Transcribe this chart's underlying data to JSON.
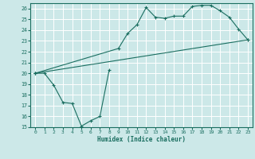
{
  "xlabel": "Humidex (Indice chaleur)",
  "ylabel": "",
  "xlim": [
    -0.5,
    23.5
  ],
  "ylim": [
    15,
    26.5
  ],
  "xticks": [
    0,
    1,
    2,
    3,
    4,
    5,
    6,
    7,
    8,
    9,
    10,
    11,
    12,
    13,
    14,
    15,
    16,
    17,
    18,
    19,
    20,
    21,
    22,
    23
  ],
  "yticks": [
    15,
    16,
    17,
    18,
    19,
    20,
    21,
    22,
    23,
    24,
    25,
    26
  ],
  "bg_color": "#cce8e8",
  "line_color": "#1a6e60",
  "grid_color": "#ffffff",
  "line1_x": [
    0,
    1,
    2,
    3,
    4,
    5,
    6,
    7,
    8
  ],
  "line1_y": [
    20.0,
    20.0,
    18.9,
    17.3,
    17.2,
    15.1,
    15.6,
    16.0,
    20.3
  ],
  "line2_x": [
    0,
    9,
    10,
    11,
    12,
    13,
    14,
    15,
    16,
    17,
    18,
    19,
    20,
    21,
    22,
    23
  ],
  "line2_y": [
    20.0,
    22.3,
    23.7,
    24.5,
    26.1,
    25.2,
    25.1,
    25.3,
    25.3,
    26.2,
    26.3,
    26.3,
    25.8,
    25.2,
    24.1,
    23.1
  ],
  "line3_x": [
    0,
    23
  ],
  "line3_y": [
    20.0,
    23.1
  ]
}
